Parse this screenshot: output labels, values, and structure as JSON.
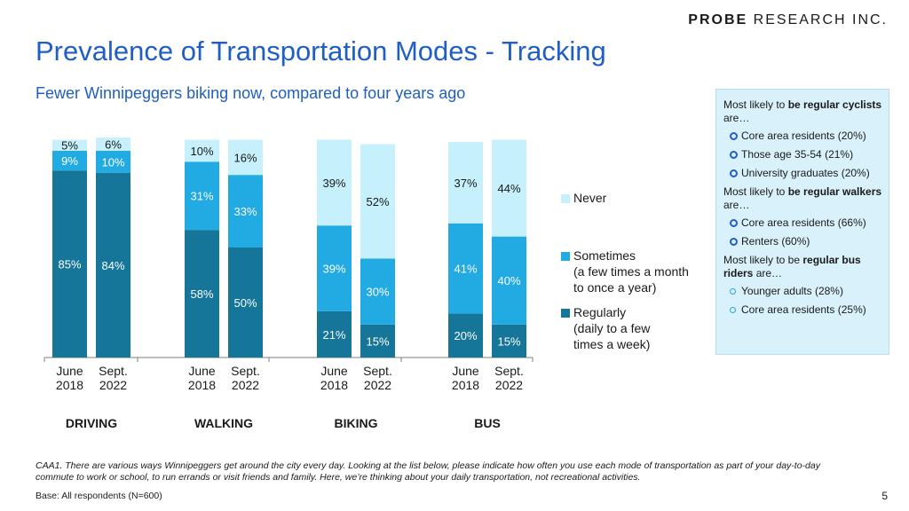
{
  "brand": {
    "bold": "PROBE",
    "rest": " RESEARCH INC."
  },
  "title": "Prevalence of Transportation Modes - Tracking",
  "subtitle": "Fewer Winnipeggers biking now, compared to four years ago",
  "chart_data": {
    "type": "bar",
    "stacked": true,
    "ylim": [
      0,
      100
    ],
    "groups": [
      {
        "name": "DRIVING",
        "bars": [
          {
            "label": [
              "June",
              "2018"
            ],
            "values": [
              85,
              9,
              5
            ],
            "labels": [
              "85%",
              "9%",
              "5%"
            ]
          },
          {
            "label": [
              "Sept.",
              "2022"
            ],
            "values": [
              84,
              10,
              6
            ],
            "labels": [
              "84%",
              "10%",
              "6%"
            ]
          }
        ]
      },
      {
        "name": "WALKING",
        "bars": [
          {
            "label": [
              "June",
              "2018"
            ],
            "values": [
              58,
              31,
              10
            ],
            "labels": [
              "58%",
              "31%",
              "10%"
            ]
          },
          {
            "label": [
              "Sept.",
              "2022"
            ],
            "values": [
              50,
              33,
              16
            ],
            "labels": [
              "50%",
              "33%",
              "16%"
            ]
          }
        ]
      },
      {
        "name": "BIKING",
        "bars": [
          {
            "label": [
              "June",
              "2018"
            ],
            "values": [
              21,
              39,
              39
            ],
            "labels": [
              "21%",
              "39%",
              "39%"
            ]
          },
          {
            "label": [
              "Sept.",
              "2022"
            ],
            "values": [
              15,
              30,
              52
            ],
            "labels": [
              "15%",
              "30%",
              "52%"
            ]
          }
        ]
      },
      {
        "name": "BUS",
        "bars": [
          {
            "label": [
              "June",
              "2018"
            ],
            "values": [
              20,
              41,
              37
            ],
            "labels": [
              "20%",
              "41%",
              "37%"
            ]
          },
          {
            "label": [
              "Sept.",
              "2022"
            ],
            "values": [
              15,
              40,
              44
            ],
            "labels": [
              "15%",
              "40%",
              "44%"
            ]
          }
        ]
      }
    ],
    "series": [
      {
        "name": "Regularly\n(daily to a few\ntimes a week)",
        "color": "#15769a"
      },
      {
        "name": "Sometimes\n(a few times a month\nto once a year)",
        "color": "#22aae2"
      },
      {
        "name": "Never",
        "color": "#c6f0fb"
      }
    ]
  },
  "sidebox": {
    "cyclists": {
      "pre": "Most likely to ",
      "bold": "be regular cyclists",
      "post": " are…"
    },
    "cyclists_items": [
      "Core area residents (20%)",
      "Those age 35-54 (21%)",
      "University graduates (20%)"
    ],
    "walkers": {
      "pre": "Most likely to ",
      "bold": "be regular walkers",
      "post": " are…"
    },
    "walkers_items": [
      "Core area residents (66%)",
      "Renters (60%)"
    ],
    "bus": {
      "pre": "Most likely to be ",
      "bold": "regular bus riders",
      "post": " are…"
    },
    "bus_items": [
      "Younger adults (28%)",
      "Core area residents (25%)"
    ]
  },
  "footnote": "CAA1. There are various ways Winnipeggers get around the city every day. Looking at the list below, please indicate how often you use each mode of transportation as part of your day-to-day commute to work or school, to run errands or visit friends and family. Here, we’re thinking about your daily transportation, not recreational activities.",
  "base": "Base:  All respondents (N=600)",
  "page_number": "5"
}
